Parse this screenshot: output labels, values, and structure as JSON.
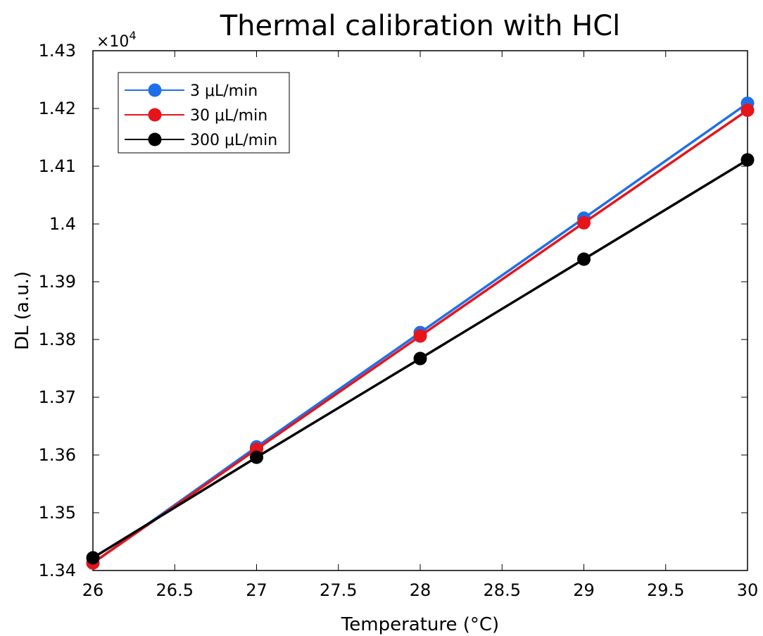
{
  "chart_data": {
    "type": "line",
    "title": "Thermal calibration with HCl",
    "xlabel": "Temperature (°C)",
    "ylabel": "DL (a.u.)",
    "y_multiplier": "×10",
    "y_multiplier_exp": "4",
    "xlim": [
      26,
      30
    ],
    "ylim": [
      1.34,
      1.43
    ],
    "x_ticks": [
      "26",
      "26.5",
      "27",
      "27.5",
      "28",
      "28.5",
      "29",
      "29.5",
      "30"
    ],
    "y_ticks": [
      "1.34",
      "1.35",
      "1.36",
      "1.37",
      "1.38",
      "1.39",
      "1.4",
      "1.41",
      "1.42",
      "1.43"
    ],
    "grid": false,
    "legend_position": "top-left",
    "x": [
      26,
      27,
      28,
      29,
      30
    ],
    "series": [
      {
        "name": "3 μL/min",
        "color": "#1f6fe8",
        "values": [
          1.3413,
          1.3614,
          1.3812,
          1.401,
          1.4209
        ]
      },
      {
        "name": "30 μL/min",
        "color": "#e6141b",
        "values": [
          1.3413,
          1.361,
          1.3806,
          1.4002,
          1.4197
        ]
      },
      {
        "name": "300 μL/min",
        "color": "#000000",
        "values": [
          1.3422,
          1.3596,
          1.3767,
          1.3939,
          1.4111
        ]
      }
    ]
  }
}
